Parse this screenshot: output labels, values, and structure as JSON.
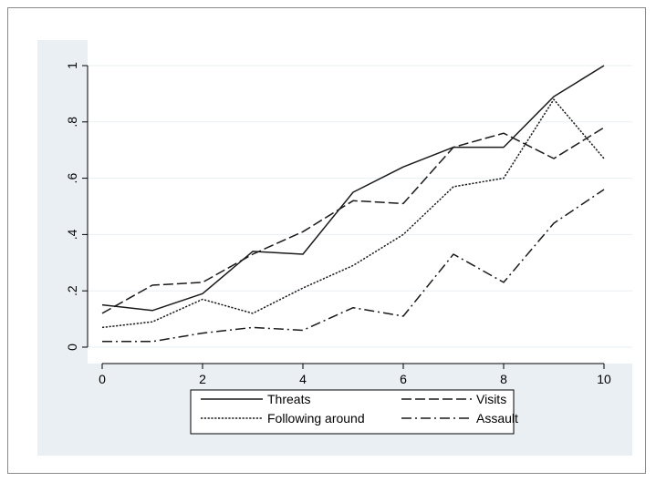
{
  "chart_data": {
    "type": "line",
    "title": "",
    "xlabel": "",
    "ylabel": "",
    "xlim": [
      0,
      10
    ],
    "ylim": [
      0,
      1
    ],
    "x": [
      0,
      1,
      2,
      3,
      4,
      5,
      6,
      7,
      8,
      9,
      10
    ],
    "x_ticks": [
      0,
      2,
      4,
      6,
      8,
      10
    ],
    "x_tick_labels": [
      "0",
      "2",
      "4",
      "6",
      "8",
      "10"
    ],
    "y_ticks": [
      0,
      0.2,
      0.4,
      0.6,
      0.8,
      1
    ],
    "y_tick_labels": [
      "0",
      ".2",
      ".4",
      ".6",
      ".8",
      "1"
    ],
    "grid": true,
    "legend_position": "bottom",
    "series": [
      {
        "name": "Threats",
        "style": "solid",
        "values": [
          0.15,
          0.13,
          0.19,
          0.34,
          0.33,
          0.55,
          0.64,
          0.71,
          0.71,
          0.89,
          1.0
        ]
      },
      {
        "name": "Visits",
        "style": "dashed",
        "values": [
          0.12,
          0.22,
          0.23,
          0.33,
          0.41,
          0.52,
          0.51,
          0.71,
          0.76,
          0.67,
          0.78
        ]
      },
      {
        "name": "Following around",
        "style": "dotted",
        "values": [
          0.07,
          0.09,
          0.17,
          0.12,
          0.21,
          0.29,
          0.4,
          0.57,
          0.6,
          0.88,
          0.67
        ]
      },
      {
        "name": "Assault",
        "style": "dashdot",
        "values": [
          0.02,
          0.02,
          0.05,
          0.07,
          0.06,
          0.14,
          0.11,
          0.33,
          0.23,
          0.44,
          0.56
        ]
      }
    ],
    "colors": {
      "plot_region_bg": "#eaeff3",
      "plot_bg": "#ffffff",
      "grid": "#eaeff3",
      "axis": "#000000",
      "line": "#1a1a1a"
    }
  }
}
